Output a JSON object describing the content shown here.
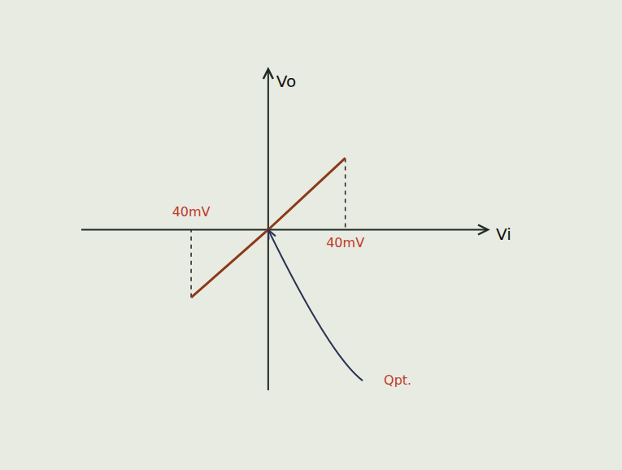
{
  "chart_data": {
    "type": "line",
    "x_label": "Vi",
    "y_label": "Vo",
    "x": [
      -40,
      0,
      40
    ],
    "values": [
      -35,
      0,
      37
    ],
    "color": "#8b3a1a",
    "xlim": [
      -97,
      114
    ],
    "ylim": [
      -83,
      83
    ],
    "xticks": [],
    "yticks": [],
    "tick_labels": false,
    "grid": false,
    "annotations": [
      {
        "text": "40mV",
        "x": -40,
        "y": 9
      },
      {
        "text": "40mV",
        "x": 40,
        "y": -7
      },
      {
        "text": "Qpt.",
        "x": 60,
        "y": -78,
        "arrow_to": [
          0,
          0
        ]
      }
    ]
  }
}
